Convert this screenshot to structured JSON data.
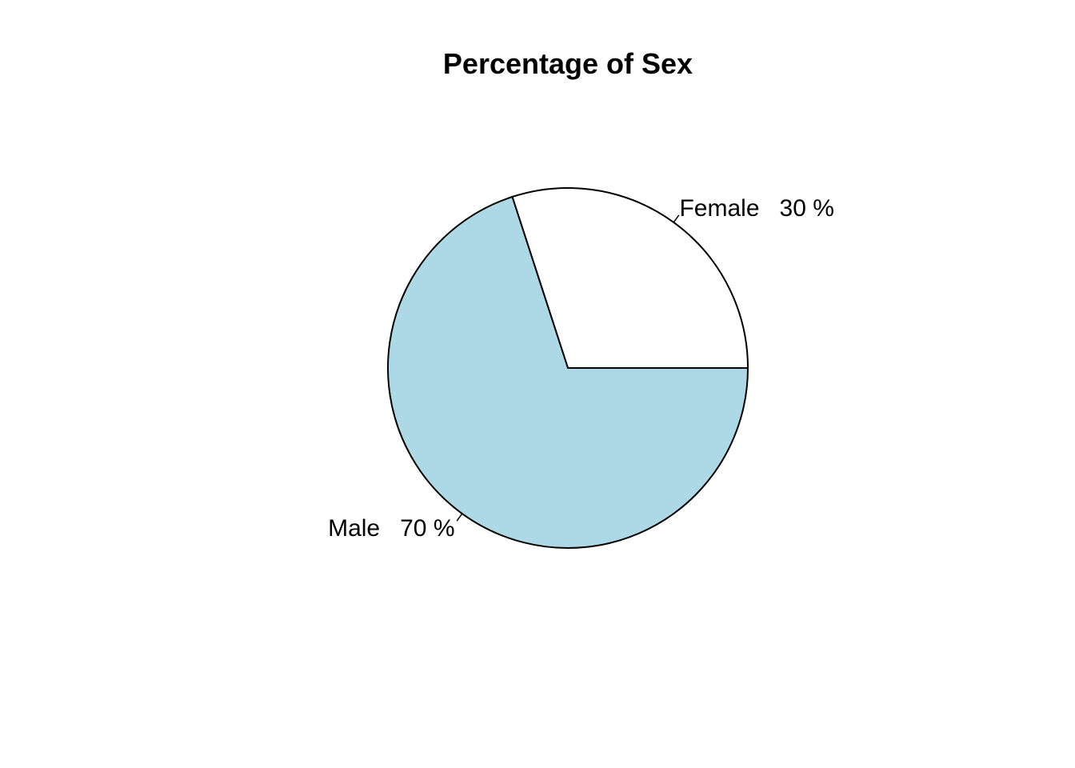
{
  "chart_data": {
    "type": "pie",
    "title": "Percentage of Sex",
    "slices": [
      {
        "label": "Female   30 %",
        "category": "Female",
        "value": 30,
        "color": "#ffffff"
      },
      {
        "label": "Male   70 %",
        "category": "Male",
        "value": 70,
        "color": "#add8e6"
      }
    ],
    "start_angle_deg": 0,
    "direction": "counterclockwise",
    "border_color": "#000000"
  }
}
